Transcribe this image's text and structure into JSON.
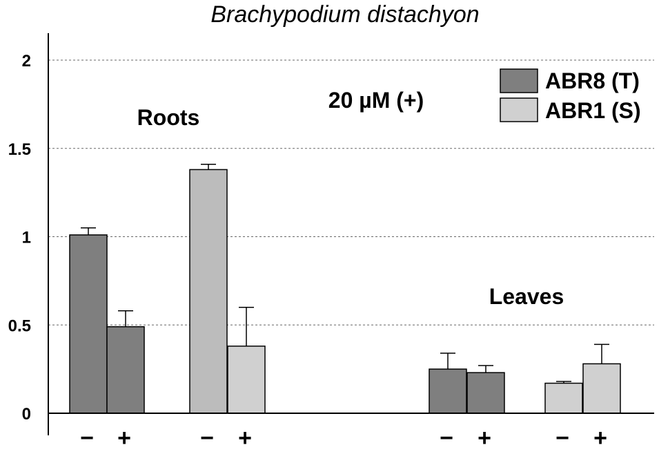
{
  "chart_data": {
    "type": "bar",
    "title": "Brachypodium distachyon",
    "ylim": [
      0,
      2
    ],
    "yticks": [
      {
        "value": 0,
        "label": "0"
      },
      {
        "value": 0.5,
        "label": "0.5"
      },
      {
        "value": 1,
        "label": "1"
      },
      {
        "value": 1.5,
        "label": "1.5"
      },
      {
        "value": 2,
        "label": "2"
      }
    ],
    "grid": true,
    "legend_position": "top-right",
    "series_colors": {
      "ABR8 (T)": "#7f7f7f",
      "ABR1 (S)": "#d0d0d0"
    },
    "legend": [
      {
        "label": "ABR8 (T)",
        "color": "#7f7f7f"
      },
      {
        "label": "ABR1 (S)",
        "color": "#d0d0d0"
      }
    ],
    "annotations": {
      "roots": "Roots",
      "leaves": "Leaves",
      "treatment": "20 µM (+)"
    },
    "bars": [
      {
        "category": "−",
        "group": "Roots",
        "series": "ABR8 (T)",
        "value": 1.01,
        "error": 0.04,
        "color": "#7f7f7f"
      },
      {
        "category": "+",
        "group": "Roots",
        "series": "ABR8 (T)",
        "value": 0.49,
        "error": 0.09,
        "color": "#7f7f7f"
      },
      {
        "category": "−",
        "group": "Roots",
        "series": "ABR1 (S)",
        "value": 1.38,
        "error": 0.03,
        "color": "#bcbcbc"
      },
      {
        "category": "+",
        "group": "Roots",
        "series": "ABR1 (S)",
        "value": 0.38,
        "error": 0.22,
        "color": "#d0d0d0"
      },
      {
        "category": "−",
        "group": "Leaves",
        "series": "ABR8 (T)",
        "value": 0.25,
        "error": 0.09,
        "color": "#7f7f7f"
      },
      {
        "category": "+",
        "group": "Leaves",
        "series": "ABR8 (T)",
        "value": 0.23,
        "error": 0.04,
        "color": "#7f7f7f"
      },
      {
        "category": "−",
        "group": "Leaves",
        "series": "ABR1 (S)",
        "value": 0.17,
        "error": 0.01,
        "color": "#d0d0d0"
      },
      {
        "category": "+",
        "group": "Leaves",
        "series": "ABR1 (S)",
        "value": 0.28,
        "error": 0.11,
        "color": "#d0d0d0"
      }
    ]
  }
}
